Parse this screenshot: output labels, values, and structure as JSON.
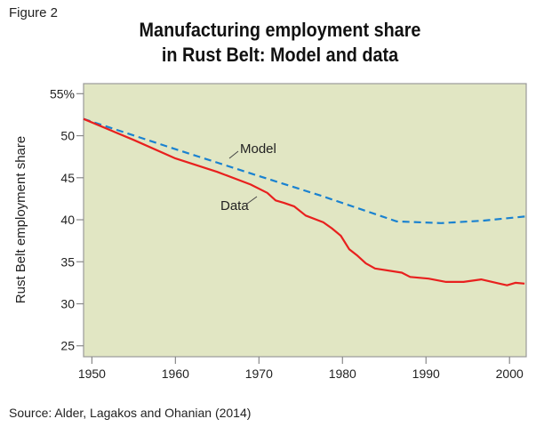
{
  "figure_label": "Figure 2",
  "source": "Source: Alder, Lagakos and Ohanian (2014)",
  "chart_data": {
    "type": "line",
    "title": [
      "Manufacturing employment share",
      "in Rust Belt: Model and data"
    ],
    "ylabel": "Rust Belt employment share",
    "xlabel": "",
    "xlim": [
      1949,
      2002
    ],
    "ylim": [
      23.7,
      56.2
    ],
    "xticks": [
      1950,
      1960,
      1970,
      1980,
      1990,
      2000
    ],
    "yticks": [
      25,
      30,
      35,
      40,
      45,
      50,
      55
    ],
    "ytick_labels": [
      "25",
      "30",
      "35",
      "40",
      "45",
      "50",
      "55%"
    ],
    "grid": false,
    "background": "#e1e6c3",
    "series": [
      {
        "name": "Model",
        "color": "#1a82d0",
        "style": "dashed",
        "x": [
          1949,
          1960,
          1970,
          1977.3,
          1986.5,
          1991.8,
          1996.9,
          2002
        ],
        "y": [
          52.0,
          48.4,
          45.2,
          42.9,
          39.8,
          39.6,
          39.9,
          40.4
        ]
      },
      {
        "name": "Data",
        "color": "#e8201e",
        "style": "solid",
        "x": [
          1949,
          1955,
          1960,
          1965,
          1969,
          1971,
          1972,
          1973,
          1974.2,
          1975.6,
          1977.7,
          1978.7,
          1979.8,
          1980.8,
          1981.7,
          1982.8,
          1983.9,
          1987.1,
          1988.1,
          1990.3,
          1992.4,
          1994.5,
          1996.6,
          1998.8,
          1999.7,
          2000.7,
          2001.8
        ],
        "y": [
          52.0,
          49.5,
          47.3,
          45.7,
          44.2,
          43.2,
          42.3,
          42.0,
          41.6,
          40.5,
          39.7,
          39.0,
          38.1,
          36.5,
          35.8,
          34.8,
          34.2,
          33.7,
          33.2,
          33.0,
          32.6,
          32.6,
          32.9,
          32.4,
          32.2,
          32.5,
          32.4
        ]
      }
    ],
    "annotations": [
      {
        "text": "Model",
        "series": "Model"
      },
      {
        "text": "Data",
        "series": "Data"
      }
    ]
  }
}
